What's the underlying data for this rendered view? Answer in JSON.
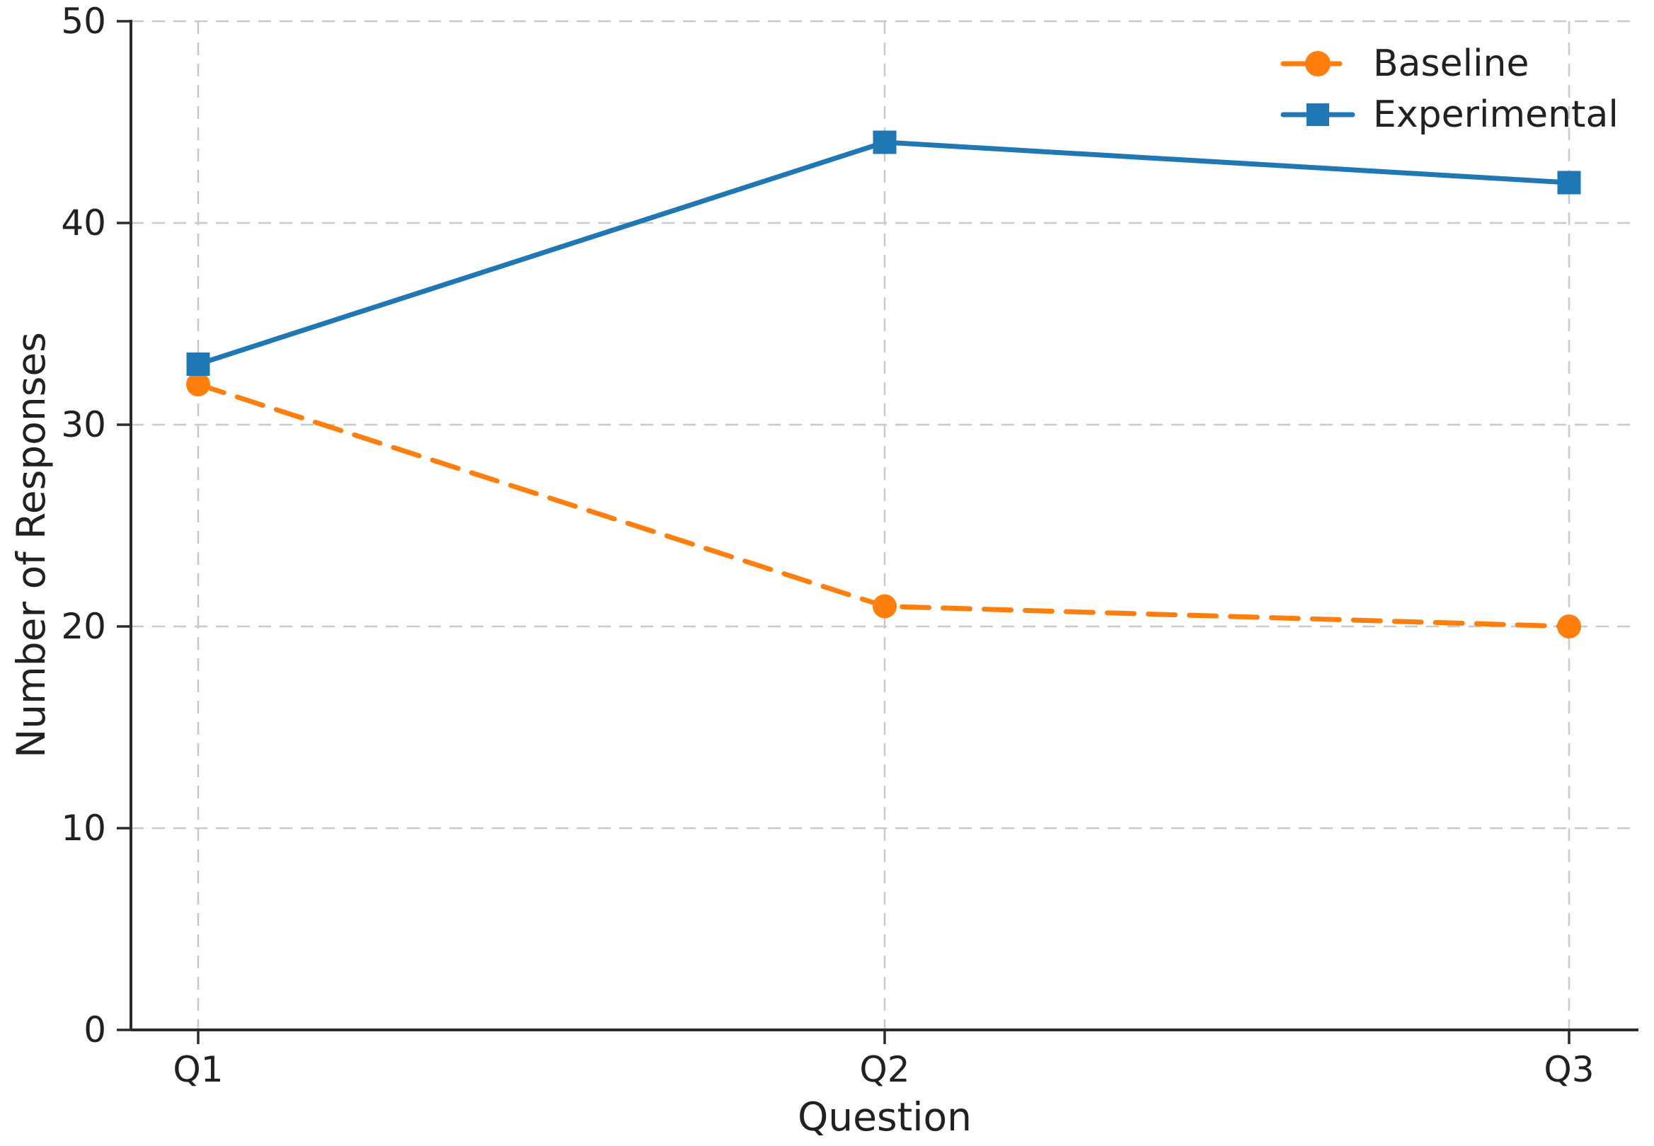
{
  "chart_data": {
    "type": "line",
    "title": "",
    "xlabel": "Question",
    "ylabel": "Number of Responses",
    "categories": [
      "Q1",
      "Q2",
      "Q3"
    ],
    "series": [
      {
        "name": "Baseline",
        "values": [
          32,
          21,
          20
        ],
        "color": "#ff7f0e",
        "line_style": "dashed",
        "marker": "circle"
      },
      {
        "name": "Experimental",
        "values": [
          33,
          44,
          42
        ],
        "color": "#1f77b4",
        "line_style": "solid",
        "marker": "square"
      }
    ],
    "ylim": [
      0,
      50
    ],
    "yticks": [
      0,
      10,
      20,
      30,
      40,
      50
    ],
    "grid": true,
    "legend_position": "upper right"
  },
  "colors": {
    "axis": "#2b2b2b",
    "grid": "#c9c9c9",
    "text": "#212121",
    "background": "#ffffff"
  }
}
